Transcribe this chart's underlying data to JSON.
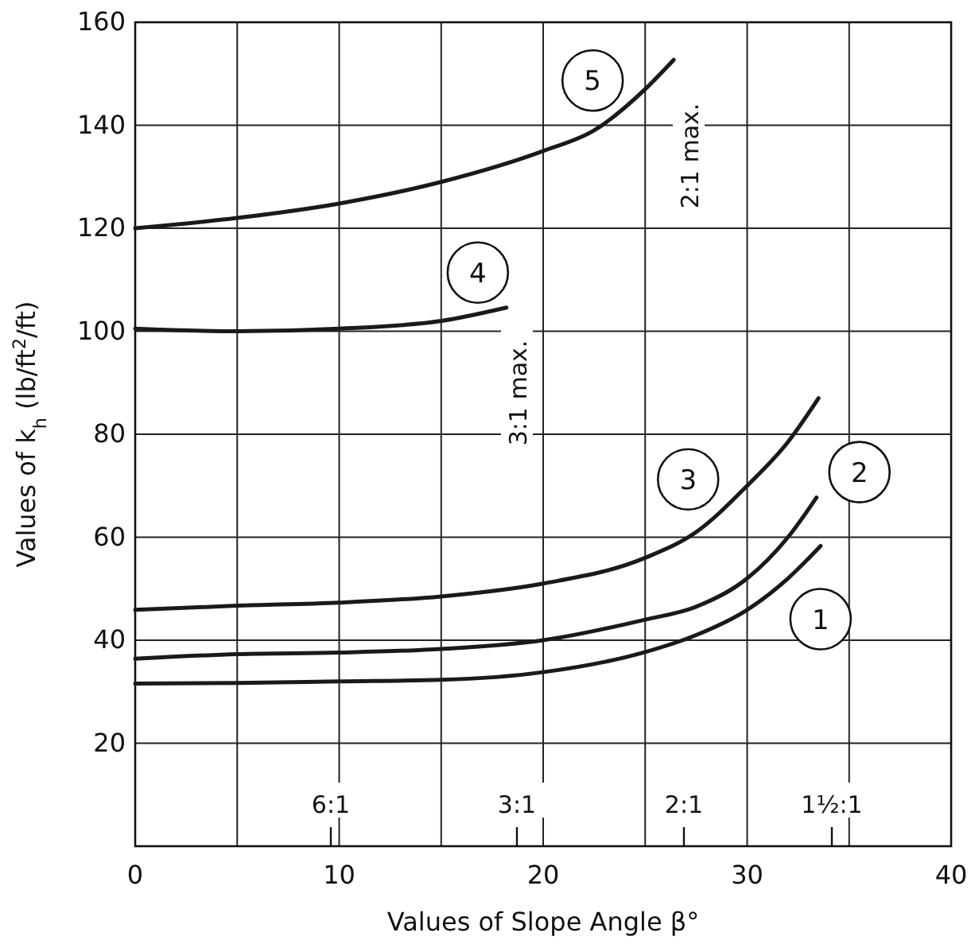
{
  "chart_data": {
    "type": "line",
    "xlabel": "Values of Slope Angle β°",
    "ylabel": "Values of k$_{h}$ (lb/ft$^{2}$/ft)",
    "xlim": [
      0,
      40
    ],
    "ylim": [
      0,
      160
    ],
    "xticks": [
      0,
      10,
      20,
      30,
      40
    ],
    "yticks": [
      20,
      40,
      60,
      80,
      100,
      120,
      140,
      160
    ],
    "grid": true,
    "marker": "none",
    "line_style": "solid",
    "series": [
      {
        "name": "1",
        "color": "#1a1a1a",
        "x": [
          0,
          5,
          10,
          15,
          20,
          25,
          27.5,
          30,
          32,
          33.6
        ],
        "values": [
          31.6,
          31.7,
          32,
          32.3,
          33.8,
          37.7,
          41,
          45.9,
          52,
          58.3
        ]
      },
      {
        "name": "2",
        "color": "#1a1a1a",
        "x": [
          0,
          5,
          10,
          15,
          20,
          25,
          27.5,
          30,
          32,
          33.4
        ],
        "values": [
          36.4,
          37.3,
          37.6,
          38.3,
          40,
          44,
          46.5,
          52,
          60,
          67.7
        ]
      },
      {
        "name": "3",
        "color": "#1a1a1a",
        "x": [
          0,
          5,
          10,
          15,
          20,
          25,
          27.5,
          30,
          32,
          33.5
        ],
        "values": [
          45.9,
          46.7,
          47.3,
          48.5,
          51,
          56,
          61,
          70,
          78.5,
          87
        ]
      },
      {
        "name": "4",
        "color": "#1a1a1a",
        "x": [
          0,
          5,
          10,
          15,
          18.2
        ],
        "values": [
          100.5,
          100,
          100.5,
          102,
          104.6
        ]
      },
      {
        "name": "5",
        "color": "#1a1a1a",
        "x": [
          0,
          5,
          10,
          15,
          20,
          22.5,
          25,
          26.4
        ],
        "values": [
          120,
          122,
          124.8,
          129,
          135,
          139,
          147,
          152.7
        ]
      }
    ],
    "annotations": [
      "3:1 max.",
      "2:1 max.",
      "6:1",
      "3:1",
      "2:1",
      "1½:1"
    ]
  }
}
